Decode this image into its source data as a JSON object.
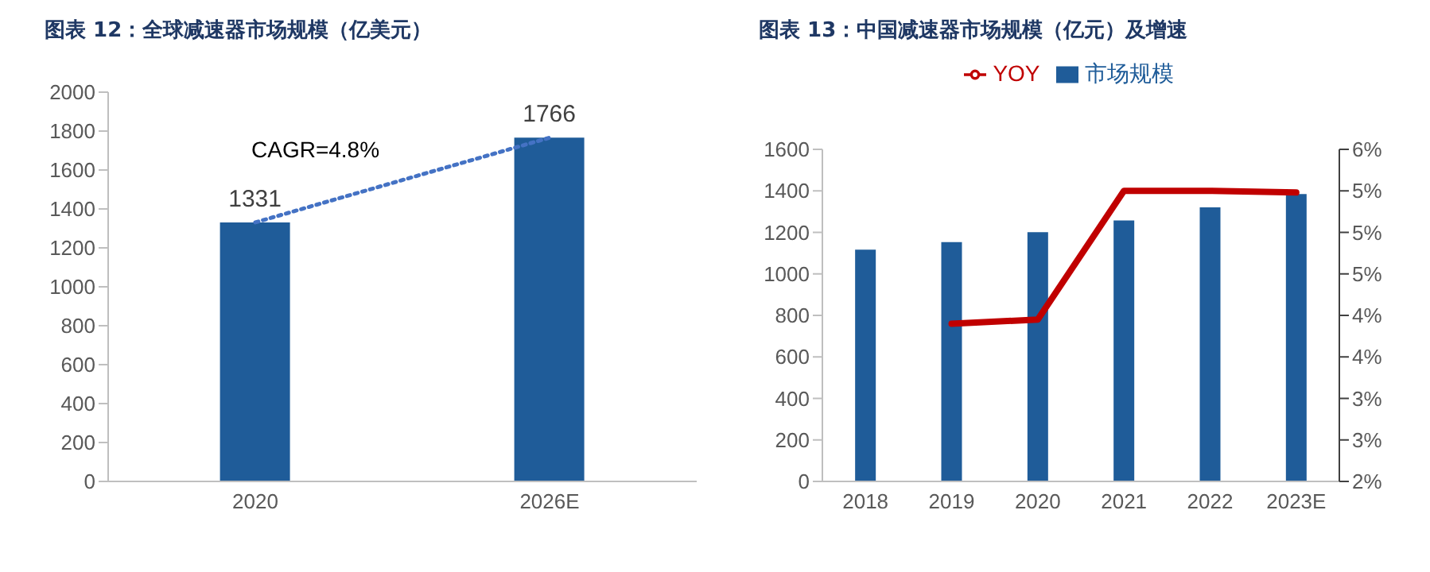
{
  "chart_data": [
    {
      "type": "bar",
      "title": "图表 12：全球减速器市场规模（亿美元）",
      "categories": [
        "2020",
        "2026E"
      ],
      "series": [
        {
          "color": "#1f5c99",
          "values": [
            1331,
            1766
          ],
          "value_labels": [
            "1331",
            "1766"
          ]
        },
        {
          "type": "line",
          "color": "#4472c4",
          "values": [
            1331,
            1766
          ],
          "line_style": "dotted"
        }
      ],
      "ylim": [
        0,
        2000
      ],
      "yticks": [
        0,
        200,
        400,
        600,
        800,
        1000,
        1200,
        1400,
        1600,
        1800,
        2000
      ],
      "annotations": [
        "CAGR=4.8%"
      ],
      "legend": false,
      "marker": "none"
    },
    {
      "type": "bar",
      "title": "图表 13：中国减速器市场规模（亿元）及增速",
      "categories": [
        "2018",
        "2019",
        "2020",
        "2021",
        "2022",
        "2023E"
      ],
      "series": [
        {
          "name": "市场规模",
          "color": "#1f5c99",
          "values": [
            1117,
            1153,
            1201,
            1257,
            1321,
            1385
          ]
        },
        {
          "type": "line",
          "name": "YOY",
          "color": "#c00000",
          "axis": "y2",
          "values": [
            null,
            3.9,
            3.95,
            5.5,
            5.5,
            5.48
          ]
        }
      ],
      "ylim": [
        0,
        1600
      ],
      "yticks": [
        0,
        200,
        400,
        600,
        800,
        1000,
        1200,
        1400,
        1600
      ],
      "y2lim": [
        2,
        6
      ],
      "y2ticks": [
        {
          "value": 2,
          "label": "2%"
        },
        {
          "value": 2.5,
          "label": "3%"
        },
        {
          "value": 3,
          "label": "3%"
        },
        {
          "value": 3.5,
          "label": "4%"
        },
        {
          "value": 4,
          "label": "4%"
        },
        {
          "value": 4.5,
          "label": "5%"
        },
        {
          "value": 5,
          "label": "5%"
        },
        {
          "value": 5.5,
          "label": "5%"
        },
        {
          "value": 6,
          "label": "6%"
        }
      ],
      "legend": "top",
      "marker": "none"
    }
  ]
}
